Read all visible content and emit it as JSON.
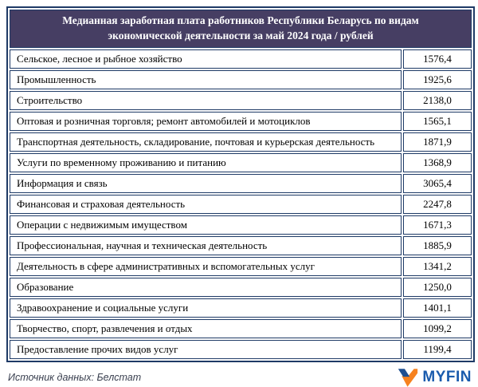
{
  "header": {
    "title_line1": "Медианная заработная плата работников Республики Беларусь по видам",
    "title_line2": "экономической деятельности за май 2024 года / рублей"
  },
  "table": {
    "rows": [
      {
        "label": "Сельское, лесное и рыбное хозяйство",
        "value": "1576,4"
      },
      {
        "label": "Промышленность",
        "value": "1925,6"
      },
      {
        "label": "Строительство",
        "value": "2138,0"
      },
      {
        "label": "Оптовая и розничная торговля; ремонт автомобилей и мотоциклов",
        "value": "1565,1"
      },
      {
        "label": "Транспортная деятельность, складирование, почтовая и курьерская деятельность",
        "value": "1871,9"
      },
      {
        "label": "Услуги по временному проживанию и питанию",
        "value": "1368,9"
      },
      {
        "label": "Информация и связь",
        "value": "3065,4"
      },
      {
        "label": "Финансовая и страховая деятельность",
        "value": "2247,8"
      },
      {
        "label": "Операции с недвижимым имуществом",
        "value": "1671,3"
      },
      {
        "label": "Профессиональная, научная и техническая деятельность",
        "value": "1885,9"
      },
      {
        "label": "Деятельность в сфере административных  и вспомогательных услуг",
        "value": "1341,2"
      },
      {
        "label": "Образование",
        "value": "1250,0"
      },
      {
        "label": "Здравоохранение и социальные услуги",
        "value": "1401,1"
      },
      {
        "label": "Творчество, спорт, развлечения и отдых",
        "value": "1099,2"
      },
      {
        "label": "Предоставление прочих видов услуг",
        "value": "1199,4"
      }
    ]
  },
  "footer": {
    "source": "Источник данных: Белстат",
    "logo_text": "MYFIN"
  },
  "colors": {
    "header_bg": "#463e63",
    "border": "#1e3a66",
    "logo_blue": "#1a5bad",
    "logo_icon_blue": "#1d4f91",
    "logo_icon_orange": "#f6821f"
  },
  "chart_data": {
    "type": "table",
    "title": "Медианная заработная плата работников Республики Беларусь по видам экономической деятельности за май 2024 года / рублей",
    "unit": "рублей",
    "period": "май 2024",
    "source": "Белстат",
    "categories": [
      "Сельское, лесное и рыбное хозяйство",
      "Промышленность",
      "Строительство",
      "Оптовая и розничная торговля; ремонт автомобилей и мотоциклов",
      "Транспортная деятельность, складирование, почтовая и курьерская деятельность",
      "Услуги по временному проживанию и питанию",
      "Информация и связь",
      "Финансовая и страховая деятельность",
      "Операции с недвижимым имуществом",
      "Профессиональная, научная и техническая деятельность",
      "Деятельность в сфере административных и вспомогательных услуг",
      "Образование",
      "Здравоохранение и социальные услуги",
      "Творчество, спорт, развлечения и отдых",
      "Предоставление прочих видов услуг"
    ],
    "values": [
      1576.4,
      1925.6,
      2138.0,
      1565.1,
      1871.9,
      1368.9,
      3065.4,
      2247.8,
      1671.3,
      1885.9,
      1341.2,
      1250.0,
      1401.1,
      1099.2,
      1199.4
    ]
  }
}
